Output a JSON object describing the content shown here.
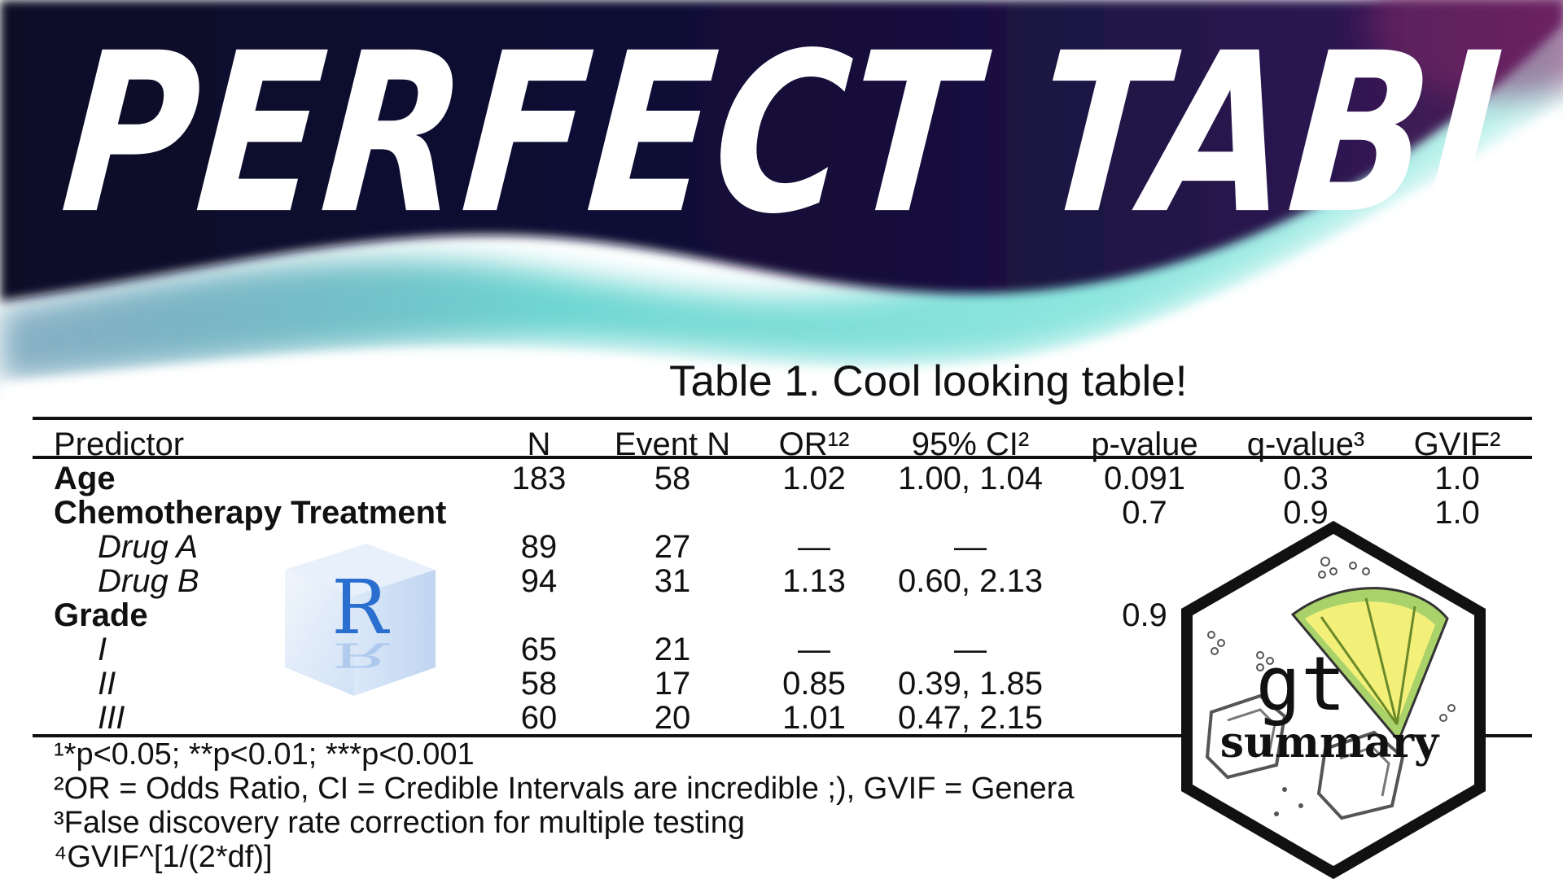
{
  "headline": "PERFECT TABLES",
  "table": {
    "title": "Table 1. Cool looking table!",
    "columns": {
      "predictor": "Predictor",
      "n": "N",
      "event_n": "Event N",
      "or": "OR¹²",
      "ci": "95% CI²",
      "p_value": "p-value",
      "q_value": "q-value³",
      "gvif": "GVIF²"
    },
    "rows": [
      {
        "label": "Age",
        "n": "183",
        "event_n": "58",
        "or": "1.02",
        "ci": "1.00, 1.04",
        "p": "0.091",
        "q": "0.3",
        "gvif": "1.0"
      },
      {
        "label": "Chemotherapy Treatment",
        "n": "",
        "event_n": "",
        "or": "",
        "ci": "",
        "p": "0.7",
        "q": "0.9",
        "gvif": "1.0"
      },
      {
        "label": "Drug A",
        "n": "89",
        "event_n": "27",
        "or": "—",
        "ci": "—",
        "p": "",
        "q": "",
        "gvif": ""
      },
      {
        "label": "Drug B",
        "n": "94",
        "event_n": "31",
        "or": "1.13",
        "ci": "0.60, 2.13",
        "p": "",
        "q": "",
        "gvif": ""
      },
      {
        "label": "Grade",
        "n": "",
        "event_n": "",
        "or": "",
        "ci": "",
        "p": "0.9",
        "q": "",
        "gvif": ""
      },
      {
        "label": "I",
        "n": "65",
        "event_n": "21",
        "or": "—",
        "ci": "—",
        "p": "",
        "q": "",
        "gvif": ""
      },
      {
        "label": "II",
        "n": "58",
        "event_n": "17",
        "or": "0.85",
        "ci": "0.39, 1.85",
        "p": "",
        "q": "",
        "gvif": ""
      },
      {
        "label": "III",
        "n": "60",
        "event_n": "20",
        "or": "1.01",
        "ci": "0.47, 2.15",
        "p": "",
        "q": "",
        "gvif": ""
      }
    ],
    "footnotes": [
      "¹*p<0.05; **p<0.01; ***p<0.001",
      "²OR = Odds Ratio, CI = Credible Intervals are incredible ;), GVIF = Genera",
      "³False discovery rate correction for multiple testing",
      "⁴GVIF^[1/(2*df)]"
    ]
  },
  "logos": {
    "r": {
      "letter": "R"
    },
    "gtsummary": {
      "word1": "gt",
      "word2": "summary"
    }
  },
  "colors": {
    "background_dark": "#0d0b2e",
    "background_purple": "#3a1a5c",
    "wave_teal": "#7fe0d8",
    "text_white": "#ffffff",
    "r_blue": "#2a6fd0",
    "lime_green": "#a9d26a",
    "lime_yellow": "#f3f07a"
  }
}
